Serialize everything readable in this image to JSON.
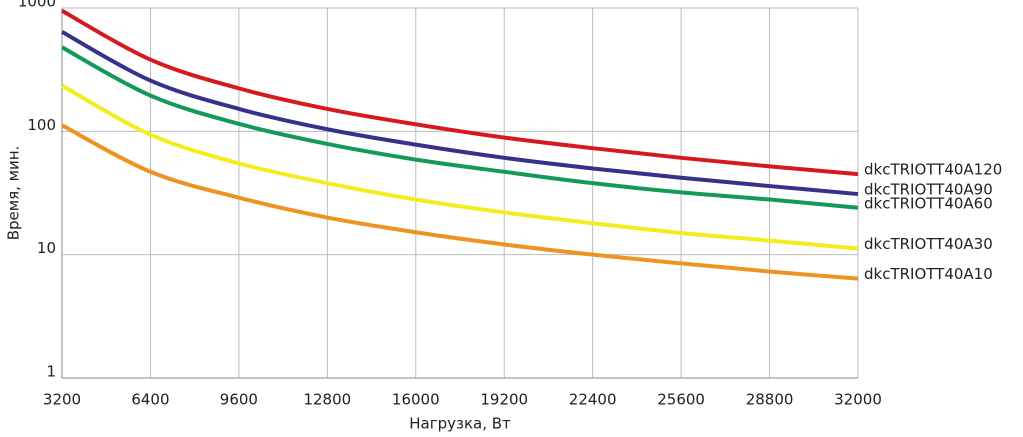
{
  "chart_data": {
    "type": "line",
    "x_label": "Нагрузка, Вт",
    "y_label": "Время, мин.",
    "x": [
      3200,
      6400,
      9600,
      12800,
      16000,
      19200,
      22400,
      25600,
      28800,
      32000
    ],
    "series": [
      {
        "name": "dkcTRIOTT40A120",
        "color": "#d7191f",
        "values": [
          950,
          381,
          223,
          152,
          114,
          89,
          73,
          61,
          52,
          45
        ]
      },
      {
        "name": "dkcTRIOTT40A90",
        "color": "#35318c",
        "values": [
          640,
          258,
          152,
          104,
          78,
          61,
          50,
          42,
          36,
          31
        ]
      },
      {
        "name": "dkcTRIOTT40A60",
        "color": "#139a5a",
        "values": [
          480,
          195,
          115,
          79,
          59,
          47,
          38,
          32,
          28,
          24
        ]
      },
      {
        "name": "dkcTRIOTT40A30",
        "color": "#f5ec1e",
        "values": [
          235,
          94,
          55,
          38,
          28,
          22,
          18,
          15,
          13,
          11.2
        ]
      },
      {
        "name": "dkcTRIOTT40A10",
        "color": "#ee9322",
        "values": [
          112,
          47,
          29,
          20,
          15.2,
          12.1,
          10,
          8.5,
          7.3,
          6.4
        ]
      }
    ],
    "xlim": [
      3200,
      32000
    ],
    "xticks": [
      3200,
      6400,
      9600,
      12800,
      16000,
      19200,
      22400,
      25600,
      28800,
      32000
    ],
    "ylim": [
      1,
      1000
    ],
    "yticks": [
      1,
      10,
      100,
      1000
    ],
    "log_y": true,
    "grid": true,
    "legend": "line-end"
  }
}
